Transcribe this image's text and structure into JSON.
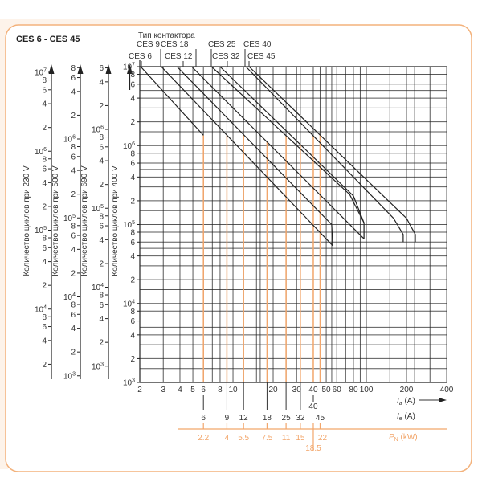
{
  "title": "CES 6 - CES 45",
  "colors": {
    "border": "#f3b27c",
    "orange": "#f2a66b",
    "grid": "#222222",
    "curve": "#222222",
    "backdrop": "#fdf3ea"
  },
  "chart_data": {
    "type": "line",
    "x_scale": "log",
    "y_scale": "log",
    "xlim": [
      2,
      400
    ],
    "ylim": [
      1000,
      10000000
    ],
    "grid": true,
    "legend_title": "Тип контактора",
    "legend_row1": [
      "CES 9",
      "CES 18",
      "CES 25",
      "CES 40"
    ],
    "legend_row2": [
      "CES 6",
      "CES 12",
      "CES 32",
      "CES 45"
    ],
    "x_ticks": [
      2,
      3,
      4,
      5,
      6,
      8,
      10,
      20,
      30,
      40,
      50,
      60,
      80,
      100,
      200,
      400
    ],
    "x_tick_labels": [
      "2",
      "3",
      "4",
      "5",
      "6",
      "8",
      "10",
      "20",
      "30",
      "40",
      "50",
      "60",
      "80",
      "100",
      "200",
      "400"
    ],
    "x_grid": [
      2,
      3,
      4,
      5,
      6,
      7,
      8,
      9,
      10,
      12,
      15,
      16,
      20,
      25,
      30,
      32,
      40,
      45,
      50,
      55,
      60,
      70,
      80,
      90,
      100,
      150,
      200,
      230,
      300,
      400
    ],
    "xlabel_ia": "I",
    "xlabel_ia_sub": "a",
    "xlabel_ia_unit": " (A)",
    "xlabel_ie": "I",
    "xlabel_ie_sub": "e",
    "xlabel_ie_unit": " (A)",
    "xlabel_pn": "P",
    "xlabel_pn_sub": "N",
    "xlabel_pn_unit": " (kW)",
    "ie_values": [
      6,
      9,
      12,
      18,
      25,
      32,
      40,
      45
    ],
    "ie_labels": [
      "6",
      "9",
      "12",
      "18",
      "25",
      "32",
      "40",
      "45"
    ],
    "pn_labels": [
      "2.2",
      "4",
      "5.5",
      "7.5",
      "11",
      "15",
      "18.5",
      "22"
    ],
    "y_axes": [
      {
        "label": "Количество циклов при 230 V",
        "decade_top": 7,
        "ticks": [
          "10^7",
          "8",
          "6",
          "4",
          "2",
          "10^6",
          "8",
          "6",
          "4",
          "2",
          "10^5",
          "8",
          "6",
          "4",
          "2",
          "10^4",
          "8",
          "6",
          "4",
          "2"
        ]
      },
      {
        "label": "Количество циклов при 500 V",
        "decade_top": 6,
        "ticks": [
          "8",
          "6",
          "4",
          "2",
          "10^6",
          "8",
          "6",
          "4",
          "2",
          "10^5",
          "8",
          "6",
          "4",
          "2",
          "10^4",
          "8",
          "6",
          "4",
          "2",
          "10^3"
        ]
      },
      {
        "label": "Количество циклов при 690 V",
        "decade_top": 6,
        "ticks": [
          "6",
          "4",
          "2",
          "10^6",
          "8",
          "6",
          "4",
          "2",
          "10^5",
          "8",
          "6",
          "4",
          "2",
          "10^4",
          "8",
          "6",
          "4",
          "2",
          "10^3"
        ]
      },
      {
        "label": "Количество циклов при 400 V",
        "decade_top": 7,
        "ticks": [
          "10^7",
          "8",
          "6",
          "4",
          "2",
          "10^6",
          "8",
          "6",
          "4",
          "2",
          "10^5",
          "8",
          "6",
          "4",
          "2",
          "10^4",
          "8",
          "6",
          "4",
          "2",
          "10^3"
        ]
      }
    ],
    "series": [
      {
        "name": "CES 6",
        "points": [
          [
            2.03,
            10000000
          ],
          [
            6,
            1350000
          ]
        ]
      },
      {
        "name": "CES 9",
        "points": [
          [
            2.9,
            10000000
          ],
          [
            56,
            54000
          ]
        ]
      },
      {
        "name": "CES 12",
        "points": [
          [
            3.8,
            10000000
          ],
          [
            55,
            100000
          ],
          [
            56,
            54000
          ]
        ]
      },
      {
        "name": "CES 18",
        "points": [
          [
            4.9,
            10000000
          ],
          [
            96,
            66000
          ]
        ]
      },
      {
        "name": "CES 25",
        "points": [
          [
            6.9,
            10000000
          ],
          [
            75,
            240000
          ],
          [
            96,
            105000
          ],
          [
            96,
            66000
          ]
        ]
      },
      {
        "name": "CES 32",
        "points": [
          [
            8,
            10000000
          ],
          [
            80,
            230000
          ],
          [
            96,
            105000
          ]
        ]
      },
      {
        "name": "CES 40",
        "points": [
          [
            12.5,
            10000000
          ],
          [
            160,
            120000
          ],
          [
            189,
            75000
          ],
          [
            189,
            60000
          ]
        ]
      },
      {
        "name": "CES 45",
        "points": [
          [
            13.2,
            10000000
          ],
          [
            200,
            120000
          ],
          [
            233,
            75000
          ],
          [
            233,
            60000
          ]
        ]
      }
    ]
  }
}
